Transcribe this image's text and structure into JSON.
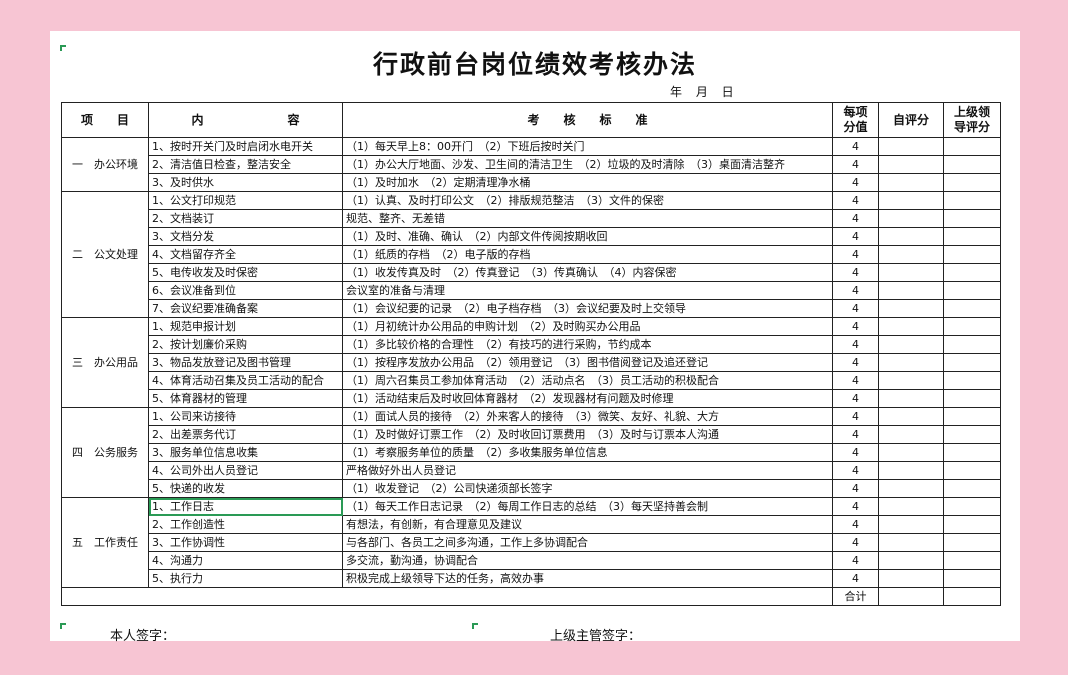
{
  "title": "行政前台岗位绩效考核办法",
  "date_line": "年 月 日",
  "headers": {
    "item": "项　　目",
    "content": "内　　　　　　　容",
    "standard": "考　　核　　标　　准",
    "score_l1": "每项",
    "score_l2": "分值",
    "self": "自评分",
    "sup_l1": "上级领",
    "sup_l2": "导评分"
  },
  "sections": [
    {
      "name": "一　办公环境",
      "rows": [
        {
          "content": "1、按时开关门及时启闭水电开关",
          "standard": "（1）每天早上8：00开门　（2）下班后按时关门",
          "score": "4"
        },
        {
          "content": "2、清洁值日检查，整洁安全",
          "standard": "（1）办公大厅地面、沙发、卫生间的清洁卫生　（2）垃圾的及时清除　（3）桌面清洁整齐",
          "score": "4"
        },
        {
          "content": "3、及时供水",
          "standard": "（1）及时加水　（2）定期清理净水桶",
          "score": "4"
        }
      ]
    },
    {
      "name": "二　公文处理",
      "rows": [
        {
          "content": "1、公文打印规范",
          "standard": "（1）认真、及时打印公文　（2）排版规范整洁　（3）文件的保密",
          "score": "4"
        },
        {
          "content": "2、文档装订",
          "standard": "规范、整齐、无差错",
          "score": "4"
        },
        {
          "content": "3、文档分发",
          "standard": "（1）及时、准确、确认　（2）内部文件传阅按期收回",
          "score": "4"
        },
        {
          "content": "4、文档留存齐全",
          "standard": "（1）纸质的存档　（2）电子版的存档",
          "score": "4"
        },
        {
          "content": "5、电传收发及时保密",
          "standard": "（1）收发传真及时　（2）传真登记　（3）传真确认　（4）内容保密",
          "score": "4"
        },
        {
          "content": "6、会议准备到位",
          "standard": "会议室的准备与清理",
          "score": "4"
        },
        {
          "content": "7、会议纪要准确备案",
          "standard": "（1）会议纪要的记录　（2）电子档存档　（3）会议纪要及时上交领导",
          "score": "4"
        }
      ]
    },
    {
      "name": "三　办公用品",
      "rows": [
        {
          "content": "1、规范申报计划",
          "standard": "（1）月初统计办公用品的申购计划　（2）及时购买办公用品",
          "score": "4"
        },
        {
          "content": "2、按计划廉价采购",
          "standard": "（1）多比较价格的合理性　（2）有技巧的进行采购，节约成本",
          "score": "4"
        },
        {
          "content": "3、物品发放登记及图书管理",
          "standard": "（1）按程序发放办公用品　（2）领用登记　（3）图书借阅登记及追还登记",
          "score": "4"
        },
        {
          "content": "4、体育活动召集及员工活动的配合",
          "standard": "（1）周六召集员工参加体育活动　（2）活动点名　（3）员工活动的积极配合",
          "score": "4"
        },
        {
          "content": "5、体育器材的管理",
          "standard": "（1）活动结束后及时收回体育器材　（2）发现器材有问题及时修理",
          "score": "4"
        }
      ]
    },
    {
      "name": "四　公务服务",
      "rows": [
        {
          "content": "1、公司来访接待",
          "standard": "（1）面试人员的接待　（2）外来客人的接待　（3）微笑、友好、礼貌、大方",
          "score": "4"
        },
        {
          "content": "2、出差票务代订",
          "standard": "（1）及时做好订票工作　（2）及时收回订票费用　（3）及时与订票本人沟通",
          "score": "4"
        },
        {
          "content": "3、服务单位信息收集",
          "standard": "（1）考察服务单位的质量　（2）多收集服务单位信息",
          "score": "4"
        },
        {
          "content": "4、公司外出人员登记",
          "standard": "严格做好外出人员登记",
          "score": "4"
        },
        {
          "content": "5、快递的收发",
          "standard": "（1）收发登记　（2）公司快递须部长签字",
          "score": "4"
        }
      ]
    },
    {
      "name": "五　工作责任",
      "rows": [
        {
          "content": "1、工作日志",
          "standard": "（1）每天工作日志记录　（2）每周工作日志的总结　（3）每天坚持善会制",
          "score": "4"
        },
        {
          "content": "2、工作创造性",
          "standard": "有想法，有创新，有合理意见及建议",
          "score": "4"
        },
        {
          "content": "3、工作协调性",
          "standard": "与各部门、各员工之间多沟通，工作上多协调配合",
          "score": "4"
        },
        {
          "content": "4、沟通力",
          "standard": "多交流，勤沟通，协调配合",
          "score": "4"
        },
        {
          "content": "5、执行力",
          "standard": "积极完成上级领导下达的任务，高效办事",
          "score": "4"
        }
      ]
    }
  ],
  "total_label": "合计",
  "signature_self": "本人签字：",
  "signature_supervisor": "上级主管签字："
}
